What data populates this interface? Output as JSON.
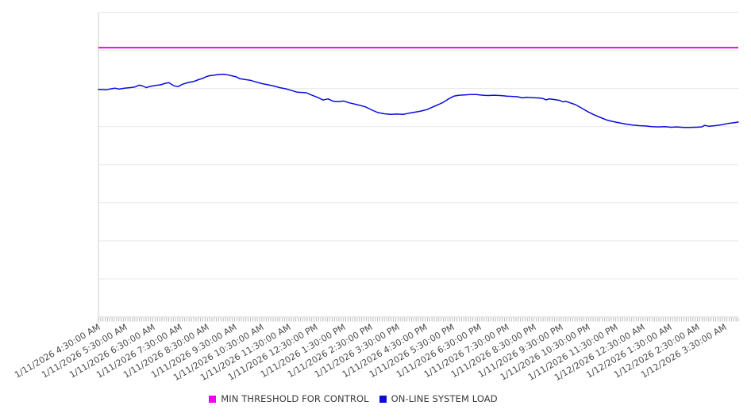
{
  "chart_data": {
    "type": "line",
    "title": "",
    "xlabel": "",
    "ylabel": "",
    "legend_position": "bottom",
    "grid": "horizontal-only",
    "y_axis_labels_visible": false,
    "ylim": [
      0,
      100
    ],
    "y_value_basis": "percent_of_plot_height_0_100",
    "horizontal_divisions": 8,
    "x_axis": {
      "label_rotation_deg": -30,
      "minor_tick_count": 283,
      "categories": [
        "1/11/2026 4:30:00 AM",
        "1/11/2026 5:30:00 AM",
        "1/11/2026 6:30:00 AM",
        "1/11/2026 7:30:00 AM",
        "1/11/2026 8:30:00 AM",
        "1/11/2026 9:30:00 AM",
        "1/11/2026 10:30:00 AM",
        "1/11/2026 11:30:00 AM",
        "1/11/2026 12:30:00 PM",
        "1/11/2026 1:30:00 PM",
        "1/11/2026 2:30:00 PM",
        "1/11/2026 3:30:00 PM",
        "1/11/2026 4:30:00 PM",
        "1/11/2026 5:30:00 PM",
        "1/11/2026 6:30:00 PM",
        "1/11/2026 7:30:00 PM",
        "1/11/2026 8:30:00 PM",
        "1/11/2026 9:30:00 PM",
        "1/11/2026 10:30:00 PM",
        "1/11/2026 11:30:00 PM",
        "1/12/2026 12:30:00 AM",
        "1/12/2026 1:30:00 AM",
        "1/12/2026 2:30:00 AM",
        "1/12/2026 3:30:00 AM"
      ],
      "hours_span": 23.5
    },
    "series": [
      {
        "name": "MIN THRESHOLD FOR CONTROL",
        "type": "constant-line",
        "color": "#F000F0",
        "value": 88.4
      },
      {
        "name": "ON-LINE SYSTEM LOAD",
        "type": "line",
        "color": "#0B0BDC",
        "x_unit": "hours_since_first_tick",
        "points": [
          [
            0,
            74.7
          ],
          [
            0.3,
            74.6
          ],
          [
            0.47,
            74.9
          ],
          [
            0.6,
            75.1
          ],
          [
            0.76,
            74.8
          ],
          [
            0.96,
            75.1
          ],
          [
            1.17,
            75.3
          ],
          [
            1.34,
            75.5
          ],
          [
            1.49,
            76.1
          ],
          [
            1.63,
            75.8
          ],
          [
            1.75,
            75.3
          ],
          [
            1.92,
            75.7
          ],
          [
            2.1,
            76.0
          ],
          [
            2.28,
            76.2
          ],
          [
            2.45,
            76.7
          ],
          [
            2.59,
            76.9
          ],
          [
            2.77,
            75.9
          ],
          [
            2.92,
            75.6
          ],
          [
            3.09,
            76.4
          ],
          [
            3.32,
            77.0
          ],
          [
            3.5,
            77.3
          ],
          [
            3.67,
            77.9
          ],
          [
            3.85,
            78.4
          ],
          [
            3.97,
            78.9
          ],
          [
            4.08,
            79.2
          ],
          [
            4.26,
            79.4
          ],
          [
            4.43,
            79.6
          ],
          [
            4.61,
            79.7
          ],
          [
            4.78,
            79.4
          ],
          [
            4.93,
            79.1
          ],
          [
            5.07,
            78.8
          ],
          [
            5.19,
            78.2
          ],
          [
            5.36,
            78.0
          ],
          [
            5.57,
            77.7
          ],
          [
            5.77,
            77.2
          ],
          [
            6.01,
            76.6
          ],
          [
            6.24,
            76.2
          ],
          [
            6.44,
            75.8
          ],
          [
            6.65,
            75.3
          ],
          [
            6.88,
            74.9
          ],
          [
            7.11,
            74.3
          ],
          [
            7.29,
            73.8
          ],
          [
            7.46,
            73.7
          ],
          [
            7.64,
            73.6
          ],
          [
            7.81,
            72.9
          ],
          [
            8.05,
            72.1
          ],
          [
            8.25,
            71.2
          ],
          [
            8.43,
            71.6
          ],
          [
            8.63,
            70.8
          ],
          [
            8.83,
            70.7
          ],
          [
            9.01,
            70.9
          ],
          [
            9.21,
            70.3
          ],
          [
            9.5,
            69.7
          ],
          [
            9.8,
            69.0
          ],
          [
            10.03,
            68.0
          ],
          [
            10.26,
            67.1
          ],
          [
            10.5,
            66.7
          ],
          [
            10.73,
            66.5
          ],
          [
            10.96,
            66.6
          ],
          [
            11.2,
            66.5
          ],
          [
            11.4,
            66.9
          ],
          [
            11.6,
            67.2
          ],
          [
            11.84,
            67.6
          ],
          [
            12.07,
            68.1
          ],
          [
            12.27,
            68.9
          ],
          [
            12.48,
            69.7
          ],
          [
            12.65,
            70.4
          ],
          [
            12.86,
            71.6
          ],
          [
            13.06,
            72.5
          ],
          [
            13.24,
            72.8
          ],
          [
            13.44,
            72.9
          ],
          [
            13.64,
            73.0
          ],
          [
            13.88,
            73.0
          ],
          [
            14.11,
            72.8
          ],
          [
            14.32,
            72.7
          ],
          [
            14.52,
            72.8
          ],
          [
            14.75,
            72.7
          ],
          [
            14.99,
            72.5
          ],
          [
            15.19,
            72.4
          ],
          [
            15.39,
            72.3
          ],
          [
            15.57,
            71.9
          ],
          [
            15.72,
            72.1
          ],
          [
            15.92,
            72.0
          ],
          [
            16.15,
            71.9
          ],
          [
            16.33,
            71.7
          ],
          [
            16.44,
            71.3
          ],
          [
            16.56,
            71.6
          ],
          [
            16.73,
            71.4
          ],
          [
            16.94,
            71.1
          ],
          [
            17.06,
            70.6
          ],
          [
            17.17,
            70.8
          ],
          [
            17.32,
            70.3
          ],
          [
            17.52,
            69.7
          ],
          [
            17.76,
            68.5
          ],
          [
            17.99,
            67.3
          ],
          [
            18.22,
            66.3
          ],
          [
            18.46,
            65.4
          ],
          [
            18.69,
            64.6
          ],
          [
            18.92,
            64.1
          ],
          [
            19.16,
            63.7
          ],
          [
            19.39,
            63.3
          ],
          [
            19.62,
            63.0
          ],
          [
            19.86,
            62.8
          ],
          [
            20.09,
            62.7
          ],
          [
            20.32,
            62.5
          ],
          [
            20.56,
            62.4
          ],
          [
            20.79,
            62.5
          ],
          [
            21.02,
            62.3
          ],
          [
            21.25,
            62.4
          ],
          [
            21.49,
            62.2
          ],
          [
            21.72,
            62.2
          ],
          [
            21.95,
            62.3
          ],
          [
            22.16,
            62.4
          ],
          [
            22.27,
            62.9
          ],
          [
            22.42,
            62.6
          ],
          [
            22.65,
            62.8
          ],
          [
            22.89,
            63.1
          ],
          [
            23.12,
            63.5
          ],
          [
            23.35,
            63.8
          ],
          [
            23.5,
            64.0
          ]
        ]
      }
    ]
  }
}
